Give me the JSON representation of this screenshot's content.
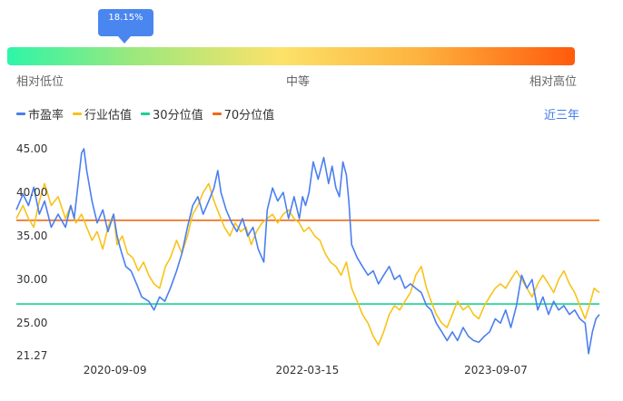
{
  "gauge": {
    "current_percentile_label": "18.15%",
    "current_percentile": 18.15,
    "low_label": "相对低位",
    "mid_label": "中等",
    "high_label": "相对高位"
  },
  "legend": [
    {
      "label": "市盈率",
      "color": "#4a7ff0"
    },
    {
      "label": "行业估值",
      "color": "#f7c31a"
    },
    {
      "label": "30分位值",
      "color": "#17d38c"
    },
    {
      "label": "70分位值",
      "color": "#ef6a16"
    }
  ],
  "period_label": "近三年",
  "chart_data": {
    "type": "line",
    "ylim": [
      21.27,
      45.0
    ],
    "y_ticks": [
      "45.00",
      "40.00",
      "35.00",
      "30.00",
      "25.00",
      "21.27"
    ],
    "y_tick_values": [
      45.0,
      40.0,
      35.0,
      30.0,
      25.0,
      21.27
    ],
    "x_start": "2019-12-01",
    "x_end": "2024-06-30",
    "x_ticks": [
      "2020-09-09",
      "2022-03-15",
      "2023-09-07"
    ],
    "reference_lines": [
      {
        "name": "30分位值",
        "value": 27.2,
        "color": "#17d38c"
      },
      {
        "name": "70分位值",
        "value": 36.8,
        "color": "#ef6a16"
      }
    ],
    "series": [
      {
        "name": "市盈率",
        "color": "#4a7ff0",
        "points": [
          [
            "2019-12-01",
            38.0
          ],
          [
            "2019-12-20",
            39.8
          ],
          [
            "2020-01-05",
            38.5
          ],
          [
            "2020-01-20",
            40.6
          ],
          [
            "2020-02-05",
            37.5
          ],
          [
            "2020-02-20",
            39.0
          ],
          [
            "2020-03-10",
            36.0
          ],
          [
            "2020-03-30",
            37.5
          ],
          [
            "2020-04-20",
            36.0
          ],
          [
            "2020-05-05",
            38.5
          ],
          [
            "2020-05-15",
            37.0
          ],
          [
            "2020-05-25",
            40.5
          ],
          [
            "2020-06-05",
            44.5
          ],
          [
            "2020-06-12",
            45.0
          ],
          [
            "2020-06-20",
            42.5
          ],
          [
            "2020-07-05",
            39.0
          ],
          [
            "2020-07-20",
            36.5
          ],
          [
            "2020-08-05",
            38.0
          ],
          [
            "2020-08-20",
            35.5
          ],
          [
            "2020-09-05",
            37.5
          ],
          [
            "2020-09-15",
            35.0
          ],
          [
            "2020-09-25",
            33.5
          ],
          [
            "2020-10-10",
            31.5
          ],
          [
            "2020-10-25",
            31.0
          ],
          [
            "2020-11-10",
            29.5
          ],
          [
            "2020-11-25",
            28.0
          ],
          [
            "2020-12-15",
            27.5
          ],
          [
            "2020-12-30",
            26.5
          ],
          [
            "2021-01-15",
            28.0
          ],
          [
            "2021-01-30",
            27.5
          ],
          [
            "2021-02-15",
            29.0
          ],
          [
            "2021-03-05",
            31.0
          ],
          [
            "2021-03-20",
            33.0
          ],
          [
            "2021-04-05",
            36.0
          ],
          [
            "2021-04-20",
            38.5
          ],
          [
            "2021-05-05",
            39.5
          ],
          [
            "2021-05-20",
            37.5
          ],
          [
            "2021-06-05",
            39.0
          ],
          [
            "2021-06-20",
            40.5
          ],
          [
            "2021-07-01",
            42.5
          ],
          [
            "2021-07-10",
            40.0
          ],
          [
            "2021-07-25",
            38.0
          ],
          [
            "2021-08-10",
            36.5
          ],
          [
            "2021-08-25",
            35.5
          ],
          [
            "2021-09-10",
            37.0
          ],
          [
            "2021-09-25",
            35.0
          ],
          [
            "2021-10-10",
            36.0
          ],
          [
            "2021-10-25",
            33.5
          ],
          [
            "2021-11-10",
            32.0
          ],
          [
            "2021-11-20",
            38.0
          ],
          [
            "2021-12-05",
            40.5
          ],
          [
            "2021-12-20",
            39.0
          ],
          [
            "2022-01-05",
            40.0
          ],
          [
            "2022-01-20",
            37.0
          ],
          [
            "2022-02-05",
            39.5
          ],
          [
            "2022-02-20",
            37.0
          ],
          [
            "2022-03-01",
            39.5
          ],
          [
            "2022-03-10",
            38.5
          ],
          [
            "2022-03-20",
            40.0
          ],
          [
            "2022-04-01",
            43.5
          ],
          [
            "2022-04-15",
            41.5
          ],
          [
            "2022-05-01",
            44.0
          ],
          [
            "2022-05-15",
            41.0
          ],
          [
            "2022-05-25",
            43.0
          ],
          [
            "2022-06-05",
            40.5
          ],
          [
            "2022-06-15",
            39.5
          ],
          [
            "2022-06-25",
            43.5
          ],
          [
            "2022-07-05",
            42.0
          ],
          [
            "2022-07-12",
            39.0
          ],
          [
            "2022-07-20",
            34.0
          ],
          [
            "2022-08-05",
            32.5
          ],
          [
            "2022-08-20",
            31.5
          ],
          [
            "2022-09-05",
            30.5
          ],
          [
            "2022-09-20",
            31.0
          ],
          [
            "2022-10-05",
            29.5
          ],
          [
            "2022-10-20",
            30.5
          ],
          [
            "2022-11-05",
            31.5
          ],
          [
            "2022-11-20",
            30.0
          ],
          [
            "2022-12-05",
            30.5
          ],
          [
            "2022-12-20",
            29.0
          ],
          [
            "2023-01-05",
            29.5
          ],
          [
            "2023-01-20",
            29.0
          ],
          [
            "2023-02-05",
            28.5
          ],
          [
            "2023-02-20",
            27.0
          ],
          [
            "2023-03-05",
            26.5
          ],
          [
            "2023-03-20",
            25.0
          ],
          [
            "2023-04-05",
            24.0
          ],
          [
            "2023-04-20",
            23.0
          ],
          [
            "2023-05-05",
            24.0
          ],
          [
            "2023-05-20",
            23.0
          ],
          [
            "2023-06-05",
            24.5
          ],
          [
            "2023-06-20",
            23.5
          ],
          [
            "2023-07-05",
            23.0
          ],
          [
            "2023-07-20",
            22.8
          ],
          [
            "2023-08-05",
            23.5
          ],
          [
            "2023-08-20",
            24.0
          ],
          [
            "2023-09-05",
            25.5
          ],
          [
            "2023-09-20",
            25.0
          ],
          [
            "2023-10-05",
            26.5
          ],
          [
            "2023-10-20",
            24.5
          ],
          [
            "2023-11-05",
            27.0
          ],
          [
            "2023-11-20",
            30.5
          ],
          [
            "2023-12-05",
            29.0
          ],
          [
            "2023-12-20",
            30.0
          ],
          [
            "2024-01-05",
            26.5
          ],
          [
            "2024-01-20",
            28.0
          ],
          [
            "2024-02-05",
            26.0
          ],
          [
            "2024-02-20",
            27.5
          ],
          [
            "2024-03-05",
            26.5
          ],
          [
            "2024-03-20",
            27.0
          ],
          [
            "2024-04-05",
            26.0
          ],
          [
            "2024-04-20",
            26.5
          ],
          [
            "2024-05-05",
            25.5
          ],
          [
            "2024-05-20",
            25.0
          ],
          [
            "2024-05-30",
            21.5
          ],
          [
            "2024-06-10",
            24.0
          ],
          [
            "2024-06-20",
            25.5
          ],
          [
            "2024-06-30",
            26.0
          ]
        ]
      },
      {
        "name": "行业估值",
        "color": "#f7c31a",
        "points": [
          [
            "2019-12-01",
            37.0
          ],
          [
            "2019-12-20",
            38.5
          ],
          [
            "2020-01-05",
            37.0
          ],
          [
            "2020-01-20",
            36.0
          ],
          [
            "2020-02-05",
            39.0
          ],
          [
            "2020-02-20",
            41.0
          ],
          [
            "2020-03-10",
            38.5
          ],
          [
            "2020-03-30",
            39.5
          ],
          [
            "2020-04-20",
            37.0
          ],
          [
            "2020-05-05",
            38.5
          ],
          [
            "2020-05-20",
            36.5
          ],
          [
            "2020-06-05",
            37.5
          ],
          [
            "2020-06-20",
            36.0
          ],
          [
            "2020-07-05",
            34.5
          ],
          [
            "2020-07-20",
            35.5
          ],
          [
            "2020-08-05",
            33.5
          ],
          [
            "2020-08-20",
            36.0
          ],
          [
            "2020-09-05",
            37.5
          ],
          [
            "2020-09-15",
            34.0
          ],
          [
            "2020-09-30",
            35.0
          ],
          [
            "2020-10-15",
            33.0
          ],
          [
            "2020-10-30",
            32.5
          ],
          [
            "2020-11-15",
            31.0
          ],
          [
            "2020-11-30",
            32.0
          ],
          [
            "2020-12-15",
            30.5
          ],
          [
            "2020-12-30",
            29.5
          ],
          [
            "2021-01-15",
            29.0
          ],
          [
            "2021-02-01",
            31.5
          ],
          [
            "2021-02-15",
            32.5
          ],
          [
            "2021-03-05",
            34.5
          ],
          [
            "2021-03-20",
            33.0
          ],
          [
            "2021-04-05",
            35.0
          ],
          [
            "2021-04-20",
            37.5
          ],
          [
            "2021-05-05",
            38.5
          ],
          [
            "2021-05-20",
            40.0
          ],
          [
            "2021-06-05",
            41.0
          ],
          [
            "2021-06-20",
            39.0
          ],
          [
            "2021-07-05",
            37.5
          ],
          [
            "2021-07-20",
            36.0
          ],
          [
            "2021-08-05",
            35.0
          ],
          [
            "2021-08-20",
            36.5
          ],
          [
            "2021-09-05",
            35.5
          ],
          [
            "2021-09-20",
            36.0
          ],
          [
            "2021-10-05",
            34.0
          ],
          [
            "2021-10-20",
            35.5
          ],
          [
            "2021-11-05",
            36.5
          ],
          [
            "2021-11-20",
            37.0
          ],
          [
            "2021-12-05",
            37.5
          ],
          [
            "2021-12-20",
            36.5
          ],
          [
            "2022-01-05",
            37.5
          ],
          [
            "2022-01-20",
            38.0
          ],
          [
            "2022-02-05",
            37.0
          ],
          [
            "2022-02-20",
            36.5
          ],
          [
            "2022-03-05",
            35.5
          ],
          [
            "2022-03-20",
            36.0
          ],
          [
            "2022-04-05",
            35.0
          ],
          [
            "2022-04-20",
            34.5
          ],
          [
            "2022-05-05",
            33.0
          ],
          [
            "2022-05-20",
            32.0
          ],
          [
            "2022-06-05",
            31.5
          ],
          [
            "2022-06-20",
            30.5
          ],
          [
            "2022-07-05",
            32.0
          ],
          [
            "2022-07-20",
            29.0
          ],
          [
            "2022-08-05",
            27.5
          ],
          [
            "2022-08-20",
            26.0
          ],
          [
            "2022-09-05",
            25.0
          ],
          [
            "2022-09-20",
            23.5
          ],
          [
            "2022-10-05",
            22.5
          ],
          [
            "2022-10-20",
            24.0
          ],
          [
            "2022-11-05",
            26.0
          ],
          [
            "2022-11-20",
            27.0
          ],
          [
            "2022-12-05",
            26.5
          ],
          [
            "2022-12-20",
            27.5
          ],
          [
            "2023-01-05",
            28.5
          ],
          [
            "2023-01-20",
            30.5
          ],
          [
            "2023-02-05",
            31.5
          ],
          [
            "2023-02-20",
            29.0
          ],
          [
            "2023-03-05",
            27.5
          ],
          [
            "2023-03-20",
            26.0
          ],
          [
            "2023-04-05",
            25.0
          ],
          [
            "2023-04-20",
            24.5
          ],
          [
            "2023-05-05",
            26.0
          ],
          [
            "2023-05-20",
            27.5
          ],
          [
            "2023-06-05",
            26.5
          ],
          [
            "2023-06-20",
            27.0
          ],
          [
            "2023-07-05",
            26.0
          ],
          [
            "2023-07-20",
            25.5
          ],
          [
            "2023-08-05",
            27.0
          ],
          [
            "2023-08-20",
            28.0
          ],
          [
            "2023-09-05",
            29.0
          ],
          [
            "2023-09-20",
            29.5
          ],
          [
            "2023-10-05",
            29.0
          ],
          [
            "2023-10-20",
            30.0
          ],
          [
            "2023-11-05",
            31.0
          ],
          [
            "2023-11-20",
            30.0
          ],
          [
            "2023-12-05",
            29.0
          ],
          [
            "2023-12-20",
            28.0
          ],
          [
            "2024-01-05",
            29.5
          ],
          [
            "2024-01-20",
            30.5
          ],
          [
            "2024-02-05",
            29.5
          ],
          [
            "2024-02-20",
            28.5
          ],
          [
            "2024-03-05",
            30.0
          ],
          [
            "2024-03-20",
            31.0
          ],
          [
            "2024-04-05",
            29.5
          ],
          [
            "2024-04-20",
            28.5
          ],
          [
            "2024-05-05",
            27.0
          ],
          [
            "2024-05-20",
            25.5
          ],
          [
            "2024-06-05",
            27.5
          ],
          [
            "2024-06-15",
            29.0
          ],
          [
            "2024-06-30",
            28.5
          ]
        ]
      }
    ]
  }
}
